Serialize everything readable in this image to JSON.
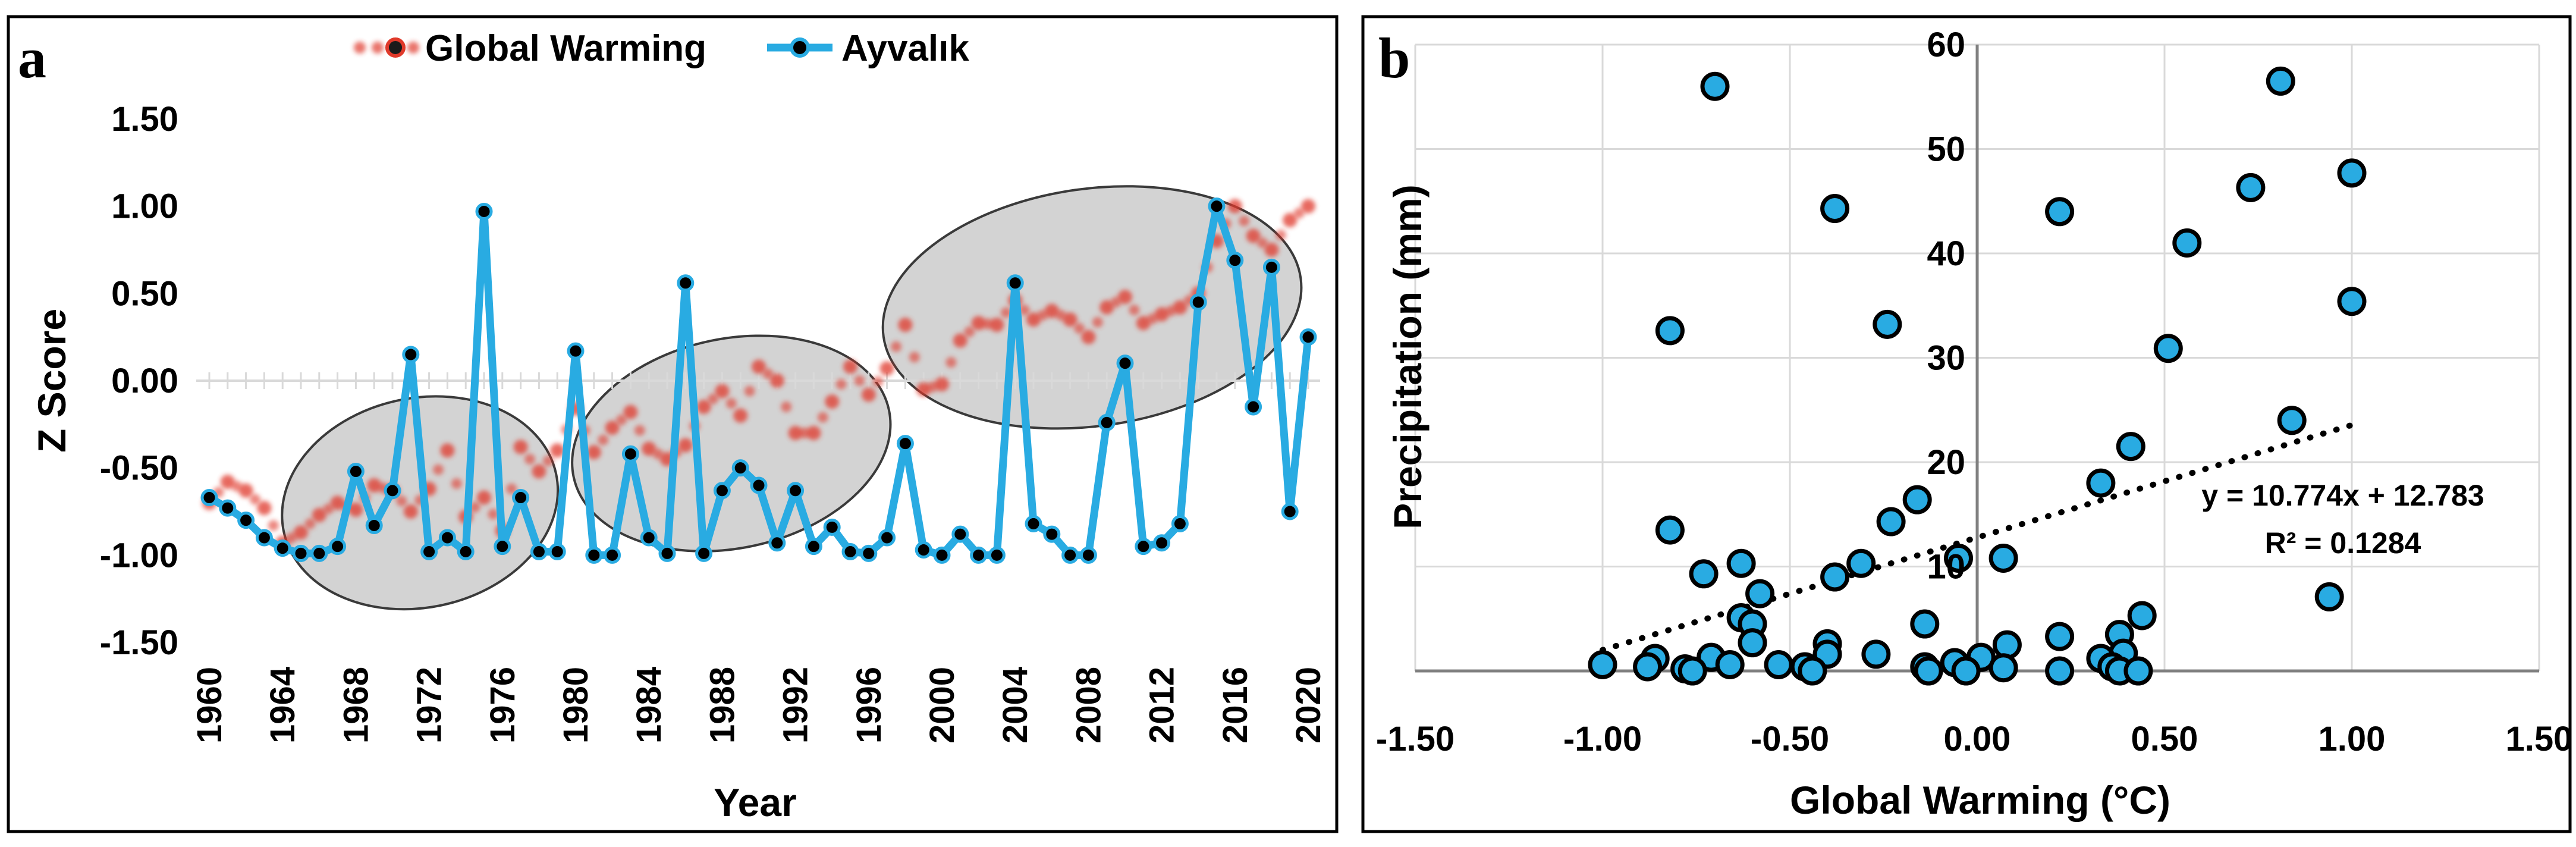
{
  "chart_data": [
    {
      "panel": "a",
      "type": "line",
      "xlabel": "Year",
      "ylabel": "Z Score",
      "xlim": [
        1960,
        2020
      ],
      "ylim": [
        -1.5,
        1.5
      ],
      "x_ticks": [
        "1960",
        "1964",
        "1968",
        "1972",
        "1976",
        "1980",
        "1984",
        "1988",
        "1992",
        "1996",
        "2000",
        "2004",
        "2008",
        "2012",
        "2016",
        "2020"
      ],
      "y_ticks": [
        "-1.50",
        "-1.00",
        "-0.50",
        "0.00",
        "0.50",
        "1.00",
        "1.50"
      ],
      "legend_position": "top",
      "grid": false,
      "x": [
        1960,
        1961,
        1962,
        1963,
        1964,
        1965,
        1966,
        1967,
        1968,
        1969,
        1970,
        1971,
        1972,
        1973,
        1974,
        1975,
        1976,
        1977,
        1978,
        1979,
        1980,
        1981,
        1982,
        1983,
        1984,
        1985,
        1986,
        1987,
        1988,
        1989,
        1990,
        1991,
        1992,
        1993,
        1994,
        1995,
        1996,
        1997,
        1998,
        1999,
        2000,
        2001,
        2002,
        2003,
        2004,
        2005,
        2006,
        2007,
        2008,
        2009,
        2010,
        2011,
        2012,
        2013,
        2014,
        2015,
        2016,
        2017,
        2018,
        2019,
        2020
      ],
      "series": [
        {
          "name": "Global Warming",
          "color": "#e0392a",
          "style": "dotted-markers",
          "values": [
            -0.7,
            -0.58,
            -0.63,
            -0.73,
            -0.93,
            -0.87,
            -0.77,
            -0.7,
            -0.74,
            -0.6,
            -0.63,
            -0.75,
            -0.62,
            -0.4,
            -0.78,
            -0.67,
            -0.86,
            -0.38,
            -0.52,
            -0.4,
            -0.16,
            -0.41,
            -0.27,
            -0.18,
            -0.39,
            -0.45,
            -0.37,
            -0.15,
            -0.06,
            -0.2,
            0.08,
            0.0,
            -0.3,
            -0.3,
            -0.12,
            0.08,
            -0.08,
            0.07,
            0.32,
            -0.05,
            -0.02,
            0.23,
            0.33,
            0.32,
            0.46,
            0.35,
            0.4,
            0.35,
            0.25,
            0.42,
            0.48,
            0.33,
            0.38,
            0.42,
            0.5,
            0.8,
            1.0,
            0.83,
            0.75,
            0.92,
            1.0
          ]
        },
        {
          "name": "Ayvalık",
          "color": "#29abe2",
          "style": "line-markers",
          "values": [
            -0.67,
            -0.73,
            -0.8,
            -0.9,
            -0.96,
            -0.99,
            -0.99,
            -0.95,
            -0.52,
            -0.83,
            -0.63,
            0.15,
            -0.98,
            -0.9,
            -0.98,
            0.97,
            -0.95,
            -0.67,
            -0.98,
            -0.98,
            0.17,
            -1.0,
            -1.0,
            -0.42,
            -0.9,
            -0.99,
            0.56,
            -0.99,
            -0.63,
            -0.5,
            -0.6,
            -0.93,
            -0.63,
            -0.95,
            -0.84,
            -0.98,
            -0.99,
            -0.9,
            -0.36,
            -0.97,
            -1.0,
            -0.88,
            -1.0,
            -1.0,
            0.56,
            -0.82,
            -0.88,
            -1.0,
            -1.0,
            -0.24,
            0.1,
            -0.95,
            -0.93,
            -0.82,
            0.45,
            1.0,
            0.69,
            -0.15,
            0.65,
            -0.75,
            0.25
          ]
        }
      ],
      "annotations": [
        {
          "shape": "ellipse",
          "cx": 1971.5,
          "cy": -0.7,
          "rx": 7.6,
          "ry": 0.6,
          "angle": -12
        },
        {
          "shape": "ellipse",
          "cx": 1988.5,
          "cy": -0.36,
          "rx": 8.8,
          "ry": 0.6,
          "angle": -12
        },
        {
          "shape": "ellipse",
          "cx": 2008.2,
          "cy": 0.42,
          "rx": 11.5,
          "ry": 0.68,
          "angle": -8
        }
      ]
    },
    {
      "panel": "b",
      "type": "scatter",
      "xlabel": "Global Warming (°C)",
      "ylabel": "Precipitation (mm)",
      "xlim": [
        -1.5,
        1.5
      ],
      "ylim": [
        0,
        60
      ],
      "x_ticks": [
        "-1.50",
        "-1.00",
        "-0.50",
        "0.00",
        "0.50",
        "1.00",
        "1.50"
      ],
      "y_ticks": [
        "10",
        "20",
        "30",
        "40",
        "50",
        "60"
      ],
      "grid": true,
      "color": "#29abe2",
      "trendline": {
        "slope": 10.774,
        "intercept": 12.783,
        "x_range": [
          -1.0,
          1.0
        ],
        "style": "dotted"
      },
      "equation_text": "y = 10.774x + 12.783",
      "r2_text": "R² = 0.1284",
      "points": [
        {
          "x": -0.7,
          "y": 56
        },
        {
          "x": 0.81,
          "y": 56.5
        },
        {
          "x": 1.0,
          "y": 47.7
        },
        {
          "x": 0.73,
          "y": 46.3
        },
        {
          "x": -0.38,
          "y": 44.3
        },
        {
          "x": 0.22,
          "y": 44.0
        },
        {
          "x": 0.56,
          "y": 41.0
        },
        {
          "x": 1.0,
          "y": 35.4
        },
        {
          "x": -0.24,
          "y": 33.2
        },
        {
          "x": -0.82,
          "y": 32.6
        },
        {
          "x": 0.51,
          "y": 30.9
        },
        {
          "x": 0.84,
          "y": 24.0
        },
        {
          "x": 0.41,
          "y": 21.5
        },
        {
          "x": 0.33,
          "y": 18.0
        },
        {
          "x": -0.16,
          "y": 16.4
        },
        {
          "x": -0.23,
          "y": 14.3
        },
        {
          "x": -0.82,
          "y": 13.5
        },
        {
          "x": -0.63,
          "y": 10.3
        },
        {
          "x": -0.31,
          "y": 10.3
        },
        {
          "x": -0.05,
          "y": 10.8
        },
        {
          "x": 0.07,
          "y": 10.8
        },
        {
          "x": -0.73,
          "y": 9.3
        },
        {
          "x": -0.38,
          "y": 9.0
        },
        {
          "x": -0.58,
          "y": 7.4
        },
        {
          "x": 0.94,
          "y": 7.1
        },
        {
          "x": -0.63,
          "y": 5.1
        },
        {
          "x": 0.44,
          "y": 5.3
        },
        {
          "x": -0.6,
          "y": 4.5
        },
        {
          "x": -0.14,
          "y": 4.5
        },
        {
          "x": 0.38,
          "y": 3.5
        },
        {
          "x": 0.22,
          "y": 3.3
        },
        {
          "x": -0.6,
          "y": 2.7
        },
        {
          "x": -0.4,
          "y": 2.6
        },
        {
          "x": 0.08,
          "y": 2.5
        },
        {
          "x": 0.39,
          "y": 1.7
        },
        {
          "x": -0.4,
          "y": 1.6
        },
        {
          "x": -0.27,
          "y": 1.6
        },
        {
          "x": 0.33,
          "y": 1.2
        },
        {
          "x": -0.71,
          "y": 1.3
        },
        {
          "x": -0.86,
          "y": 1.2
        },
        {
          "x": 0.01,
          "y": 1.3
        },
        {
          "x": -0.06,
          "y": 0.8
        },
        {
          "x": -1.0,
          "y": 0.6
        },
        {
          "x": -0.88,
          "y": 0.4
        },
        {
          "x": -0.66,
          "y": 0.6
        },
        {
          "x": -0.53,
          "y": 0.6
        },
        {
          "x": -0.46,
          "y": 0.4
        },
        {
          "x": -0.78,
          "y": 0.2
        },
        {
          "x": -0.14,
          "y": 0.4
        },
        {
          "x": 0.07,
          "y": 0.3
        },
        {
          "x": 0.36,
          "y": 0.4
        },
        {
          "x": -0.76,
          "y": 0.0
        },
        {
          "x": -0.44,
          "y": 0.0
        },
        {
          "x": -0.13,
          "y": 0.0
        },
        {
          "x": -0.03,
          "y": 0.0
        },
        {
          "x": 0.22,
          "y": 0.0
        },
        {
          "x": 0.38,
          "y": 0.0
        },
        {
          "x": 0.43,
          "y": 0.0
        }
      ]
    }
  ]
}
